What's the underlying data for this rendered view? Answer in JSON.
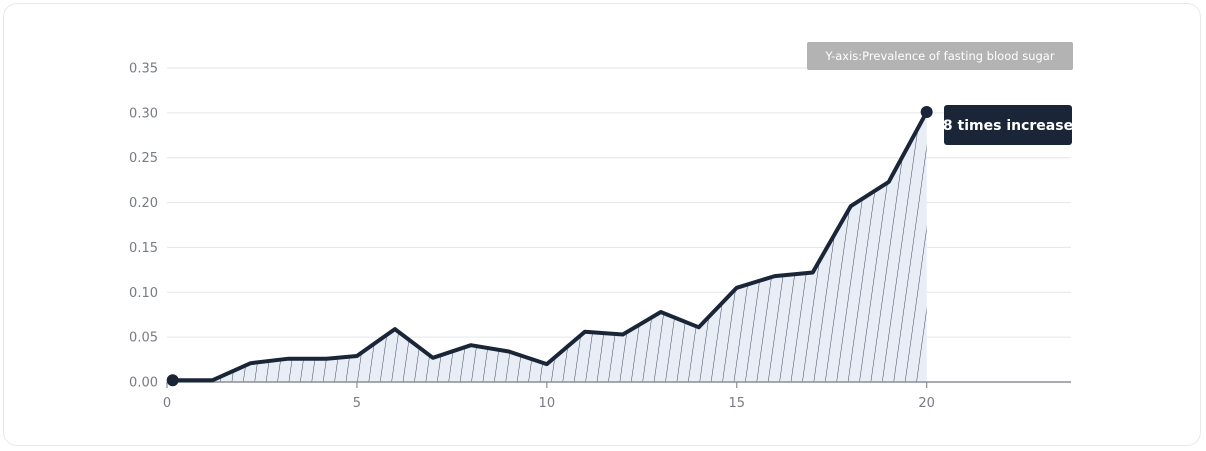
{
  "chart_data": {
    "type": "area",
    "title": "",
    "xlabel": "",
    "ylabel": "Y-axis:Prevalence of fasting blood sugar",
    "xlim": [
      0,
      23.8
    ],
    "ylim": [
      0,
      0.35
    ],
    "x_ticks": [
      0,
      5,
      10,
      15,
      20
    ],
    "y_ticks": [
      0.0,
      0.05,
      0.1,
      0.15,
      0.2,
      0.25,
      0.3,
      0.35
    ],
    "y_tick_labels": [
      "0.00",
      "0.05",
      "0.10",
      "0.15",
      "0.20",
      "0.25",
      "0.30",
      "0.35"
    ],
    "grid": true,
    "series": [
      {
        "x": [
          0.15,
          1.2,
          2.2,
          3.2,
          4.2,
          5,
          6,
          7,
          8,
          9,
          10,
          11,
          12,
          13,
          14,
          15,
          16,
          17,
          18,
          19,
          20
        ],
        "y": [
          0.002,
          0.002,
          0.021,
          0.026,
          0.026,
          0.029,
          0.059,
          0.027,
          0.041,
          0.034,
          0.02,
          0.056,
          0.053,
          0.078,
          0.061,
          0.105,
          0.118,
          0.122,
          0.196,
          0.223,
          0.301
        ]
      }
    ],
    "annotation": {
      "text": "8 times increase",
      "x": 20,
      "y": 0.301
    },
    "colors": {
      "line": "#1a2638",
      "fill": "#e8edf6",
      "hatch": "#2a3347",
      "grid": "#e4e6ea",
      "axis": "#8a8d93",
      "label_box": "#b3b3b3",
      "callout": "#1a2638"
    }
  }
}
